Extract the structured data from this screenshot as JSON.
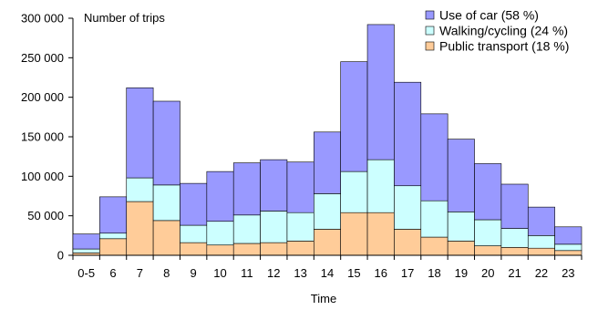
{
  "chart_data": {
    "type": "bar",
    "stacked": true,
    "inner_label": "Number of trips",
    "xlabel": "Time",
    "ylabel": "",
    "ylim": [
      0,
      300000
    ],
    "yticks": [
      0,
      50000,
      100000,
      150000,
      200000,
      250000,
      300000
    ],
    "ytick_labels": [
      "0",
      "50 000",
      "100 000",
      "150 000",
      "200 000",
      "250 000",
      "300 000"
    ],
    "categories": [
      "0-5",
      "6",
      "7",
      "8",
      "9",
      "10",
      "11",
      "12",
      "13",
      "14",
      "15",
      "16",
      "17",
      "18",
      "19",
      "20",
      "21",
      "22",
      "23"
    ],
    "series": [
      {
        "name": "Public transport (18 %)",
        "color": "#FFCC99",
        "values": [
          3000,
          21000,
          68000,
          44000,
          16000,
          13000,
          15000,
          16000,
          18000,
          33000,
          54000,
          54000,
          33000,
          23000,
          18000,
          12000,
          10000,
          9000,
          6000
        ]
      },
      {
        "name": "Walking/cycling (24 %)",
        "color": "#CCFFFF",
        "values": [
          5000,
          7000,
          30000,
          45000,
          22000,
          30000,
          36000,
          40000,
          36000,
          45000,
          52000,
          67000,
          55000,
          46000,
          37000,
          33000,
          24000,
          16000,
          8000
        ]
      },
      {
        "name": "Use of car (58 %)",
        "color": "#9999FF",
        "values": [
          19000,
          46000,
          114000,
          106000,
          53000,
          63000,
          66000,
          65000,
          64000,
          78000,
          139000,
          171000,
          131000,
          110000,
          92000,
          71000,
          56000,
          36000,
          22000
        ]
      }
    ],
    "legend": {
      "placement": "top-right",
      "order": [
        2,
        1,
        0
      ]
    }
  }
}
